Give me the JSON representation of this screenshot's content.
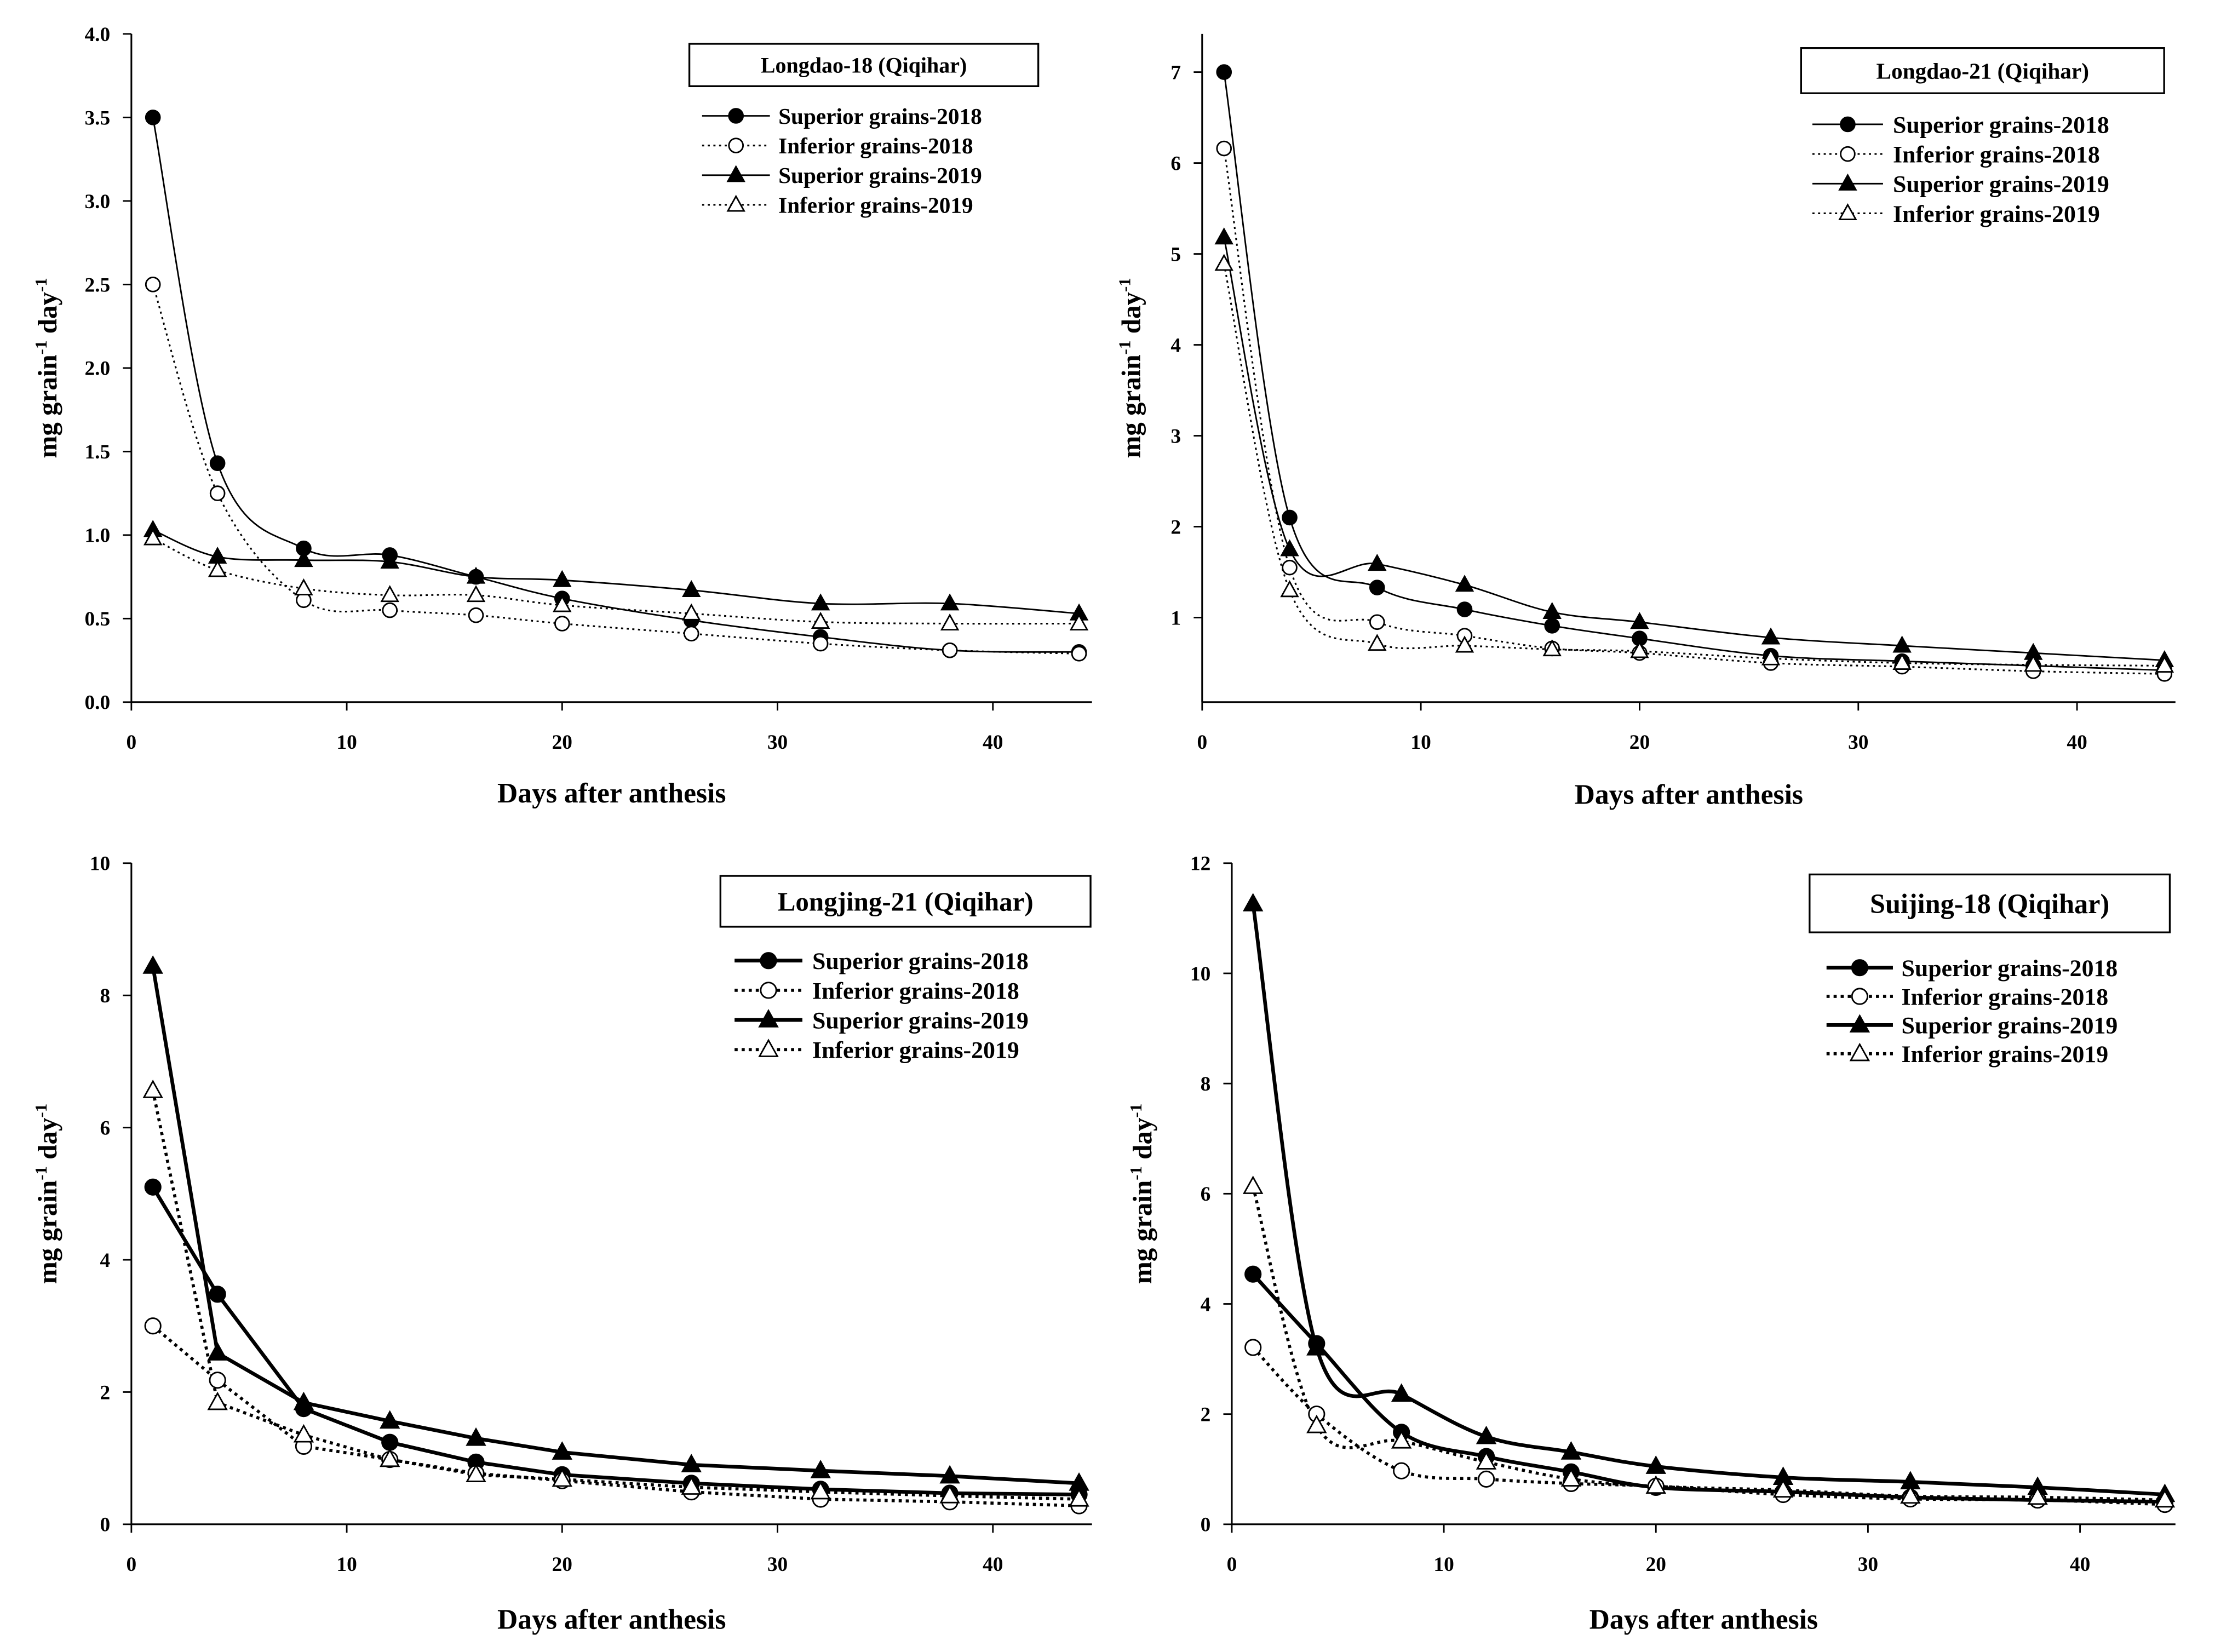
{
  "figure": {
    "background": "#ffffff",
    "ink": "#000000"
  },
  "chart_data": [
    {
      "type": "line",
      "title": "Longdao-18 (Qiqihar)",
      "xlabel": "Days after anthesis",
      "ylabel": [
        "mg grain",
        "-1",
        " day",
        "-1"
      ],
      "xlim": [
        0,
        44.6
      ],
      "ylim": [
        0,
        4.0
      ],
      "xticks": [
        "0",
        "10",
        "20",
        "30",
        "40"
      ],
      "yticks": [
        "0.0",
        "0.5",
        "1.0",
        "1.5",
        "2.0",
        "2.5",
        "3.0",
        "3.5",
        "4.0"
      ],
      "smooth": true,
      "x": [
        1,
        4,
        8,
        12,
        16,
        20,
        26,
        32,
        38,
        44
      ],
      "series": [
        {
          "name": "Superior grains-2018",
          "values": [
            3.5,
            1.43,
            0.92,
            0.88,
            0.75,
            0.62,
            0.49,
            0.39,
            0.31,
            0.3
          ]
        },
        {
          "name": "Inferior grains-2018",
          "values": [
            2.5,
            1.25,
            0.61,
            0.55,
            0.52,
            0.47,
            0.41,
            0.35,
            0.31,
            0.29
          ]
        },
        {
          "name": "Superior grains-2019",
          "values": [
            1.03,
            0.87,
            0.85,
            0.84,
            0.75,
            0.73,
            0.67,
            0.59,
            0.59,
            0.53
          ]
        },
        {
          "name": "Inferior grains-2019",
          "values": [
            0.98,
            0.79,
            0.68,
            0.64,
            0.64,
            0.58,
            0.53,
            0.48,
            0.47,
            0.47
          ]
        }
      ]
    },
    {
      "type": "line",
      "title": "Longdao-21 (Qiqihar)",
      "xlabel": "Days after anthesis",
      "ylabel": [
        "mg grain",
        "-1",
        " day",
        "-1"
      ],
      "xlim": [
        0,
        44.5
      ],
      "ylim": [
        0.07,
        7.42
      ],
      "xticks": [
        "0",
        "10",
        "20",
        "30",
        "40"
      ],
      "yticks": [
        "1",
        "2",
        "3",
        "4",
        "5",
        "6",
        "7"
      ],
      "smooth": true,
      "x": [
        1,
        4,
        8,
        12,
        16,
        20,
        26,
        32,
        38,
        44
      ],
      "series": [
        {
          "name": "Superior grains-2018",
          "values": [
            7.0,
            2.1,
            1.33,
            1.09,
            0.91,
            0.77,
            0.58,
            0.52,
            0.47,
            0.42
          ]
        },
        {
          "name": "Inferior grains-2018",
          "values": [
            6.16,
            1.55,
            0.95,
            0.8,
            0.66,
            0.61,
            0.5,
            0.46,
            0.41,
            0.38
          ]
        },
        {
          "name": "Superior grains-2019",
          "values": [
            5.18,
            1.75,
            1.59,
            1.36,
            1.06,
            0.95,
            0.78,
            0.69,
            0.61,
            0.53
          ]
        },
        {
          "name": "Inferior grains-2019",
          "values": [
            4.89,
            1.3,
            0.71,
            0.69,
            0.65,
            0.63,
            0.55,
            0.5,
            0.48,
            0.47
          ]
        }
      ]
    },
    {
      "type": "line",
      "title": "Longjing-21 (Qiqihar)",
      "xlabel": "Days after anthesis",
      "ylabel": [
        "mg grain",
        "-1",
        " day",
        "-1"
      ],
      "xlim": [
        0,
        44.6
      ],
      "ylim": [
        0,
        10
      ],
      "xticks": [
        "0",
        "10",
        "20",
        "30",
        "40"
      ],
      "yticks": [
        "0",
        "2",
        "4",
        "6",
        "8",
        "10"
      ],
      "smooth": false,
      "x": [
        1,
        4,
        8,
        12,
        16,
        20,
        26,
        32,
        38,
        44
      ],
      "series": [
        {
          "name": "Superior grains-2018",
          "values": [
            5.1,
            3.48,
            1.75,
            1.24,
            0.94,
            0.75,
            0.62,
            0.53,
            0.47,
            0.45
          ]
        },
        {
          "name": "Inferior grains-2018",
          "values": [
            3.0,
            2.18,
            1.18,
            0.98,
            0.77,
            0.66,
            0.49,
            0.38,
            0.34,
            0.28
          ]
        },
        {
          "name": "Superior grains-2019",
          "values": [
            8.44,
            2.59,
            1.84,
            1.56,
            1.3,
            1.09,
            0.9,
            0.81,
            0.73,
            0.62
          ]
        },
        {
          "name": "Inferior grains-2019",
          "values": [
            6.56,
            1.84,
            1.35,
            0.98,
            0.75,
            0.68,
            0.56,
            0.49,
            0.43,
            0.38
          ]
        }
      ]
    },
    {
      "type": "line",
      "title": "Suijing-18 (Qiqihar)",
      "xlabel": "Days after anthesis",
      "ylabel": [
        "mg grain",
        "-1",
        " day",
        "-1"
      ],
      "xlim": [
        0,
        44.5
      ],
      "ylim": [
        0,
        12
      ],
      "xticks": [
        "0",
        "10",
        "20",
        "30",
        "40"
      ],
      "yticks": [
        "0",
        "2",
        "4",
        "6",
        "8",
        "10",
        "12"
      ],
      "smooth": true,
      "x": [
        1,
        4,
        8,
        12,
        16,
        20,
        26,
        32,
        38,
        44
      ],
      "series": [
        {
          "name": "Superior grains-2018",
          "values": [
            4.54,
            3.28,
            1.67,
            1.23,
            0.95,
            0.67,
            0.59,
            0.49,
            0.44,
            0.41
          ]
        },
        {
          "name": "Inferior grains-2018",
          "values": [
            3.21,
            2.0,
            0.97,
            0.82,
            0.74,
            0.69,
            0.54,
            0.46,
            0.44,
            0.36
          ]
        },
        {
          "name": "Superior grains-2019",
          "values": [
            11.26,
            3.2,
            2.36,
            1.59,
            1.31,
            1.05,
            0.85,
            0.77,
            0.67,
            0.54
          ]
        },
        {
          "name": "Inferior grains-2019",
          "values": [
            6.13,
            1.79,
            1.51,
            1.13,
            0.82,
            0.69,
            0.62,
            0.51,
            0.49,
            0.44
          ]
        }
      ]
    }
  ]
}
